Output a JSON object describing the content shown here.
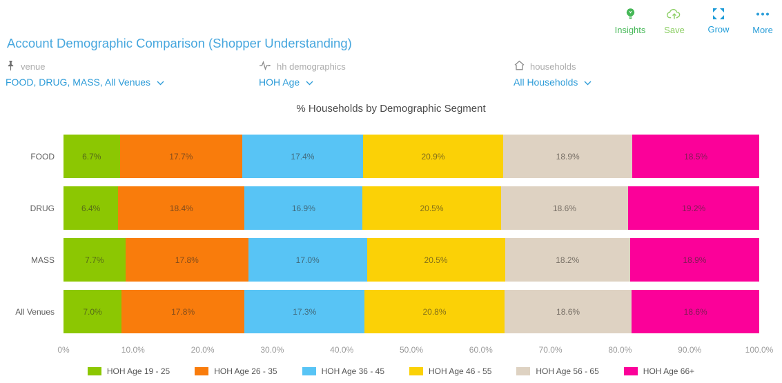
{
  "toolbar": {
    "items": [
      {
        "label": "Insights",
        "icon": "lightbulb-icon",
        "color": "#46b858"
      },
      {
        "label": "Save",
        "icon": "cloud-save-icon",
        "color": "#8bce63"
      },
      {
        "label": "Grow",
        "icon": "expand-icon",
        "color": "#1e9cd8"
      },
      {
        "label": "More",
        "icon": "more-icon",
        "color": "#2d9fd9"
      }
    ]
  },
  "page_title": "Account Demographic Comparison (Shopper Understanding)",
  "filters": [
    {
      "name": "venue",
      "icon": "pin-icon",
      "value": "FOOD, DRUG, MASS, All Venues"
    },
    {
      "name": "hh demographics",
      "icon": "pulse-icon",
      "value": "HOH Age"
    },
    {
      "name": "households",
      "icon": "home-icon",
      "value": "All Households"
    }
  ],
  "chart_data": {
    "type": "bar",
    "orientation": "horizontal-stacked",
    "title": "% Households by Demographic Segment",
    "categories": [
      "FOOD",
      "DRUG",
      "MASS",
      "All Venues"
    ],
    "series": [
      {
        "name": "HOH Age 19 - 25",
        "color": "#8cc702",
        "values": [
          6.7,
          6.4,
          7.7,
          7.0
        ]
      },
      {
        "name": "HOH Age 26 - 35",
        "color": "#f97c0c",
        "values": [
          17.7,
          18.4,
          17.8,
          17.8
        ]
      },
      {
        "name": "HOH Age 36 - 45",
        "color": "#58c4f5",
        "values": [
          17.4,
          16.9,
          17.0,
          17.3
        ]
      },
      {
        "name": "HOH Age 46 - 55",
        "color": "#fbd106",
        "values": [
          20.9,
          20.5,
          20.5,
          20.8
        ]
      },
      {
        "name": "HOH Age 56 - 65",
        "color": "#ded2c2",
        "values": [
          18.9,
          18.6,
          18.2,
          18.6
        ]
      },
      {
        "name": "HOH Age 66+",
        "color": "#fb0199",
        "values": [
          18.5,
          19.2,
          18.9,
          18.6
        ]
      }
    ],
    "x_ticks": [
      "0%",
      "10.0%",
      "20.0%",
      "30.0%",
      "40.0%",
      "50.0%",
      "60.0%",
      "70.0%",
      "80.0%",
      "90.0%",
      "100.0%"
    ],
    "xlim": [
      0,
      100
    ],
    "value_suffix": "%",
    "legend_position": "bottom"
  }
}
